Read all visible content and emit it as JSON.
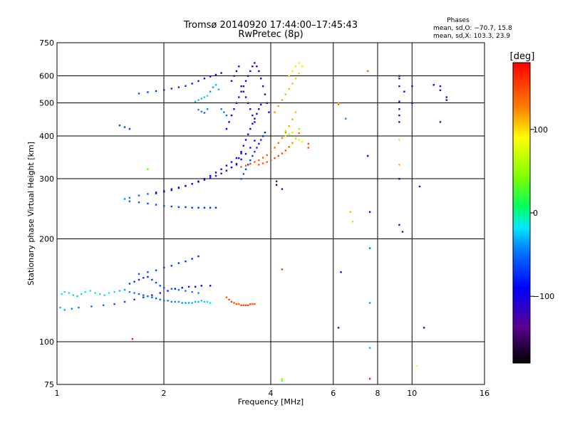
{
  "chart_data": {
    "type": "scatter",
    "title": "Tromsø 20140920 17:44:00–17:45:43",
    "subtitle": "RwPretec (8p)",
    "xlabel": "Frequency [MHz]",
    "ylabel": "Stationary phase Virtual Height [km]",
    "x_scale": "log",
    "y_scale": "log",
    "xlim": [
      1,
      16
    ],
    "ylim": [
      75,
      750
    ],
    "x_ticks": [
      1,
      2,
      4,
      6,
      8,
      10,
      16
    ],
    "x_tick_labels": [
      "1",
      "2",
      "4",
      "6",
      "8",
      "10",
      "16"
    ],
    "x_grid": [
      2,
      4,
      6,
      8,
      10
    ],
    "y_ticks": [
      75,
      100,
      200,
      300,
      400,
      500,
      600,
      750
    ],
    "y_tick_labels": [
      "75",
      "100",
      "200",
      "300",
      "400",
      "500",
      "600",
      "750"
    ],
    "y_grid": [
      100,
      200,
      300,
      400,
      500,
      600
    ],
    "grid": true,
    "phase_box": {
      "title": "Phases",
      "line1": "mean, sd,O: −70.7, 15.8",
      "line2": "mean, sd,X: 103.3, 23.9"
    },
    "colorbar": {
      "label": "[deg]",
      "range": [
        -180,
        180
      ],
      "ticks": [
        100,
        0,
        -100
      ],
      "tick_labels": [
        "100",
        "0",
        "−100"
      ],
      "colormap": "rainbow"
    },
    "series": [
      {
        "x": [
          1.03,
          1.05,
          1.08,
          1.11,
          1.14,
          1.17,
          1.2,
          1.24,
          1.28,
          1.32,
          1.36,
          1.4,
          1.45,
          1.5,
          1.55,
          1.6,
          1.65,
          1.7,
          1.75,
          1.8,
          1.85,
          1.9,
          1.95,
          2.0,
          2.05,
          2.1,
          2.15,
          2.2,
          2.25,
          2.3,
          2.35,
          2.4,
          2.45,
          2.5,
          2.55,
          2.6,
          2.65,
          2.7,
          1.02,
          1.05,
          1.1,
          1.15,
          1.25,
          1.35,
          1.45,
          1.55,
          1.65,
          1.75,
          1.85,
          1.95,
          2.05,
          2.15,
          2.25,
          2.35,
          2.45,
          2.55,
          2.7,
          1.6,
          1.65,
          1.7,
          1.75,
          1.8,
          1.85,
          1.9,
          1.95,
          2.0,
          2.1,
          2.2,
          2.3,
          2.4,
          2.5,
          1.7,
          1.8,
          1.9,
          2.0,
          2.1,
          2.2,
          2.3,
          2.4,
          2.5
        ],
        "y": [
          138,
          140,
          139,
          137,
          136,
          138,
          140,
          141,
          139,
          138,
          137,
          139,
          140,
          141,
          142,
          140,
          139,
          138,
          137,
          136,
          135,
          134,
          133,
          132,
          132,
          131,
          131,
          131,
          130,
          130,
          130,
          130,
          131,
          131,
          132,
          131,
          131,
          130,
          126,
          124,
          125,
          126,
          127,
          128,
          129,
          131,
          133,
          135,
          137,
          139,
          141,
          143,
          144,
          145,
          145,
          146,
          146,
          148,
          150,
          152,
          154,
          155,
          152,
          149,
          146,
          144,
          143,
          142,
          141,
          140,
          139,
          158,
          160,
          162,
          165,
          167,
          170,
          172,
          175,
          178
        ],
        "phase_deg": [
          -15,
          -18,
          -20,
          -22,
          -25,
          -20,
          -15,
          -12,
          -10,
          -8,
          -10,
          -15,
          -20,
          -25,
          -35,
          -40,
          -45,
          -50,
          -55,
          -60,
          -58,
          -55,
          -50,
          -48,
          -45,
          -45,
          -40,
          -40,
          -38,
          -35,
          -35,
          -30,
          -30,
          -28,
          -25,
          -25,
          -20,
          -20,
          -30,
          -35,
          -40,
          -45,
          -50,
          -55,
          -60,
          -65,
          -70,
          -72,
          -75,
          -78,
          -80,
          -82,
          -84,
          -85,
          -85,
          -86,
          -86,
          -70,
          -72,
          -74,
          -75,
          -76,
          -70,
          -65,
          -60,
          -58,
          -55,
          -50,
          -50,
          -45,
          -40,
          -60,
          -62,
          -65,
          -68,
          -70,
          -72,
          -74,
          -76,
          -78
        ]
      },
      {
        "x": [
          1.55,
          1.6,
          1.7,
          1.8,
          1.9,
          2.0,
          2.1,
          2.2,
          2.3,
          2.4,
          2.5,
          2.6,
          2.7,
          2.8,
          2.9,
          3.0,
          3.1,
          3.2,
          3.3,
          3.4,
          3.5,
          3.6,
          1.6,
          1.7,
          1.8,
          1.9,
          2.0,
          2.1,
          2.2,
          2.3,
          2.4,
          2.5,
          2.6,
          2.7,
          2.8,
          1.9,
          2.0,
          2.1,
          2.2,
          2.3,
          2.4,
          2.5,
          2.6,
          2.7,
          2.8,
          2.9,
          3.0,
          3.1,
          3.2,
          3.3
        ],
        "y": [
          262,
          264,
          268,
          271,
          274,
          277,
          280,
          283,
          286,
          290,
          294,
          298,
          302,
          306,
          311,
          317,
          324,
          332,
          342,
          355,
          370,
          388,
          258,
          256,
          254,
          252,
          250,
          249,
          248,
          248,
          247,
          247,
          247,
          247,
          247,
          272,
          275,
          278,
          282,
          286,
          290,
          295,
          300,
          306,
          313,
          320,
          328,
          336,
          345,
          356
        ],
        "phase_deg": [
          -40,
          -45,
          -50,
          -55,
          -60,
          -65,
          -70,
          -75,
          -78,
          -80,
          -82,
          -84,
          -85,
          -86,
          -87,
          -88,
          -88,
          -87,
          -86,
          -85,
          -84,
          -82,
          -55,
          -58,
          -60,
          -62,
          -64,
          -66,
          -68,
          -70,
          -72,
          -74,
          -75,
          -76,
          -78,
          -90,
          -92,
          -95,
          -98,
          -100,
          -102,
          -104,
          -105,
          -106,
          -107,
          -108,
          -108,
          -108,
          -107,
          -106
        ]
      },
      {
        "x": [
          1.7,
          1.8,
          1.9,
          2.0,
          2.1,
          2.2,
          2.3,
          2.4,
          2.5,
          2.6,
          2.7,
          2.8,
          2.9,
          1.5,
          1.55,
          1.6,
          2.45,
          2.5,
          2.55,
          2.6,
          2.65,
          2.5,
          2.55,
          2.6,
          2.65,
          2.7,
          2.75,
          2.8,
          2.85,
          2.9,
          2.95,
          3.0
        ],
        "y": [
          533,
          538,
          542,
          546,
          551,
          556,
          561,
          570,
          580,
          590,
          598,
          605,
          612,
          430,
          425,
          420,
          505,
          510,
          515,
          520,
          525,
          478,
          472,
          468,
          480,
          540,
          556,
          565,
          548,
          480,
          470,
          460
        ],
        "phase_deg": [
          -60,
          -65,
          -70,
          -72,
          -75,
          -78,
          -80,
          -82,
          -84,
          -86,
          -88,
          -90,
          -95,
          -60,
          -65,
          -70,
          -30,
          -28,
          -25,
          -22,
          -20,
          -40,
          -45,
          -50,
          -42,
          -38,
          -35,
          -30,
          -32,
          -45,
          -48,
          -50
        ]
      },
      {
        "x": [
          3.0,
          3.05,
          3.1,
          3.15,
          3.2,
          3.25,
          3.3,
          3.35,
          3.4,
          3.45,
          3.5,
          3.55,
          3.6,
          3.65,
          3.7,
          3.75,
          3.8,
          3.85,
          3.9,
          3.95,
          3.2,
          3.25,
          3.3,
          3.35,
          3.4,
          3.45,
          3.5,
          3.55,
          3.6,
          3.65,
          3.7,
          3.75,
          3.3,
          3.35,
          3.4,
          3.45,
          3.5,
          3.55,
          3.6,
          3.65,
          3.7,
          3.75,
          3.8,
          3.85,
          3.1,
          3.15,
          3.2,
          3.25,
          3.3,
          3.35,
          3.4,
          3.45,
          3.5,
          3.55,
          3.6
        ],
        "y": [
          420,
          440,
          460,
          480,
          500,
          520,
          540,
          560,
          580,
          600,
          620,
          640,
          655,
          640,
          620,
          590,
          560,
          530,
          500,
          470,
          330,
          345,
          360,
          375,
          390,
          405,
          420,
          435,
          450,
          465,
          480,
          495,
          300,
          310,
          320,
          330,
          340,
          350,
          360,
          370,
          380,
          390,
          400,
          410,
          580,
          600,
          620,
          640,
          560,
          540,
          520,
          500,
          480,
          460,
          440
        ],
        "phase_deg": [
          -90,
          -92,
          -95,
          -98,
          -100,
          -102,
          -104,
          -105,
          -106,
          -107,
          -108,
          -108,
          -108,
          -107,
          -106,
          -105,
          -104,
          -103,
          -102,
          -101,
          -80,
          -82,
          -84,
          -86,
          -88,
          -90,
          -92,
          -94,
          -96,
          -98,
          -100,
          -102,
          -60,
          -62,
          -64,
          -66,
          -68,
          -70,
          -72,
          -74,
          -76,
          -78,
          -80,
          -82,
          -110,
          -112,
          -114,
          -115,
          -105,
          -104,
          -103,
          -102,
          -101,
          -100,
          -98
        ]
      },
      {
        "x": [
          3.3,
          3.4,
          3.5,
          3.6,
          3.7,
          3.8,
          3.9,
          4.0,
          4.1,
          4.2,
          4.3,
          4.4,
          4.5,
          4.6,
          4.7,
          3.7,
          3.8,
          3.9,
          4.0,
          4.1,
          4.2,
          4.3,
          4.4,
          4.5,
          4.6,
          4.7,
          4.8,
          4.1,
          4.2,
          4.3,
          4.4,
          4.5,
          4.6,
          4.7,
          4.8,
          4.5,
          4.6,
          4.7,
          4.8,
          4.9
        ],
        "y": [
          325,
          328,
          332,
          336,
          340,
          346,
          352,
          360,
          370,
          382,
          395,
          410,
          428,
          448,
          470,
          330,
          333,
          336,
          340,
          345,
          350,
          356,
          363,
          372,
          382,
          394,
          408,
          470,
          490,
          510,
          530,
          550,
          570,
          590,
          610,
          600,
          620,
          640,
          655,
          640
        ],
        "phase_deg": [
          145,
          150,
          148,
          146,
          144,
          142,
          140,
          138,
          135,
          132,
          128,
          125,
          120,
          115,
          110,
          140,
          142,
          144,
          146,
          148,
          150,
          150,
          148,
          146,
          144,
          140,
          136,
          120,
          118,
          115,
          112,
          110,
          108,
          106,
          104,
          100,
          98,
          96,
          95,
          94
        ]
      },
      {
        "x": [
          4.4,
          4.5,
          4.6,
          4.7,
          4.8,
          4.9,
          4.4,
          4.6,
          4.8
        ],
        "y": [
          400,
          405,
          410,
          395,
          390,
          385,
          415,
          380,
          420
        ],
        "phase_deg": [
          60,
          62,
          65,
          70,
          72,
          75,
          55,
          78,
          58
        ]
      },
      {
        "x": [
          3.0,
          3.05,
          3.1,
          3.15,
          3.2,
          3.25,
          3.3,
          3.35,
          3.4,
          3.45,
          3.5,
          3.55,
          3.6
        ],
        "y": [
          135,
          133,
          131,
          130,
          129,
          129,
          128,
          128,
          128,
          128,
          129,
          129,
          129
        ],
        "phase_deg": [
          145,
          150,
          152,
          148,
          146,
          144,
          148,
          150,
          152,
          150,
          148,
          146,
          145
        ]
      },
      {
        "x": [
          5.1,
          5.1,
          6.2,
          6.2,
          6.7,
          6.8,
          7.5,
          7.5,
          7.6,
          7.6,
          7.6,
          9.2,
          9.2,
          9.2,
          9.2,
          9.2,
          9.2,
          9.2,
          9.2,
          9.2,
          9.2,
          9.2,
          9.4,
          9.5,
          10.0,
          10.0,
          10.8,
          11.5,
          12.0,
          12.0,
          12.0,
          12.5,
          12.5,
          4.3,
          4.3,
          4.3,
          4.3,
          1.8,
          1.63,
          4.15,
          4.15,
          6.5,
          6.3,
          6.2,
          7.6,
          7.6,
          10.5,
          10.3
        ],
        "y": [
          380,
          370,
          500,
          495,
          240,
          225,
          620,
          350,
          240,
          188,
          130,
          600,
          590,
          560,
          505,
          480,
          460,
          440,
          390,
          330,
          300,
          220,
          210,
          540,
          560,
          500,
          110,
          565,
          560,
          545,
          440,
          520,
          510,
          163,
          77,
          280,
          78,
          320,
          102,
          288,
          295,
          450,
          160,
          110,
          96,
          78,
          285,
          85
        ],
        "phase_deg": [
          150,
          145,
          120,
          130,
          110,
          105,
          140,
          -90,
          -100,
          -50,
          -40,
          -110,
          -120,
          -115,
          -100,
          -105,
          -110,
          -95,
          100,
          110,
          -90,
          -120,
          -130,
          -100,
          -105,
          -125,
          -110,
          -100,
          -115,
          -120,
          -135,
          -105,
          -95,
          160,
          30,
          -120,
          60,
          30,
          170,
          -150,
          -140,
          -40,
          -90,
          -110,
          -30,
          170,
          -80,
          90
        ]
      }
    ]
  }
}
